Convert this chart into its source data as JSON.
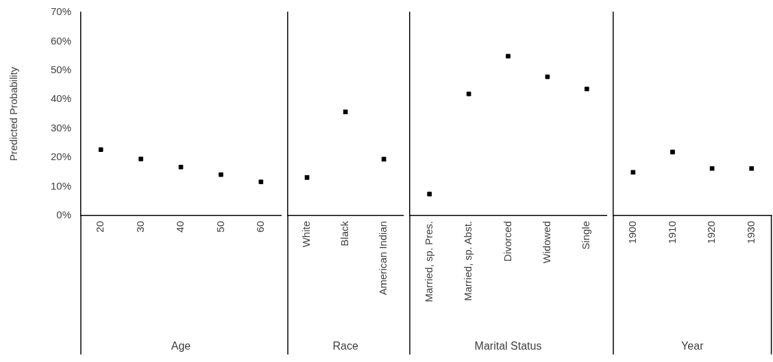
{
  "chart_data": [
    {
      "type": "scatter",
      "categories": [
        "20",
        "30",
        "40",
        "50",
        "60"
      ],
      "values": [
        22.7,
        19.5,
        16.7,
        14.1,
        11.6
      ],
      "color": "#000000",
      "marker": "square",
      "xlabel": "Age",
      "ylabel": "Predicted Probability",
      "ylim": [
        0,
        70
      ],
      "yticks": [
        {
          "value": 0,
          "label": "0%"
        },
        {
          "value": 10,
          "label": "10%"
        },
        {
          "value": 20,
          "label": "20%"
        },
        {
          "value": 30,
          "label": "30%"
        },
        {
          "value": 40,
          "label": "40%"
        },
        {
          "value": 50,
          "label": "50%"
        },
        {
          "value": 60,
          "label": "60%"
        },
        {
          "value": 70,
          "label": "70%"
        }
      ],
      "grid": false,
      "legend": false
    },
    {
      "type": "scatter",
      "categories": [
        "White",
        "Black",
        "American Indian"
      ],
      "values": [
        13.1,
        35.7,
        19.4
      ],
      "color": "#000000",
      "marker": "square",
      "xlabel": "Race",
      "ylim": [
        0,
        70
      ],
      "tick_labels": "x",
      "grid": false,
      "legend": false
    },
    {
      "type": "scatter",
      "categories": [
        "Married, sp. Pres.",
        "Married, sp. Abst.",
        "Divorced",
        "Widowed",
        "Single"
      ],
      "values": [
        7.4,
        41.9,
        54.9,
        47.8,
        43.6
      ],
      "color": "#000000",
      "marker": "square",
      "xlabel": "Marital Status",
      "ylim": [
        0,
        70
      ],
      "tick_labels": "x",
      "grid": false,
      "legend": false
    },
    {
      "type": "scatter",
      "categories": [
        "1900",
        "1910",
        "1920",
        "1930"
      ],
      "values": [
        14.9,
        21.9,
        16.2,
        16.2
      ],
      "color": "#000000",
      "marker": "square",
      "xlabel": "Year",
      "ylim": [
        0,
        70
      ],
      "tick_labels": "x",
      "grid": false,
      "legend": false
    }
  ]
}
